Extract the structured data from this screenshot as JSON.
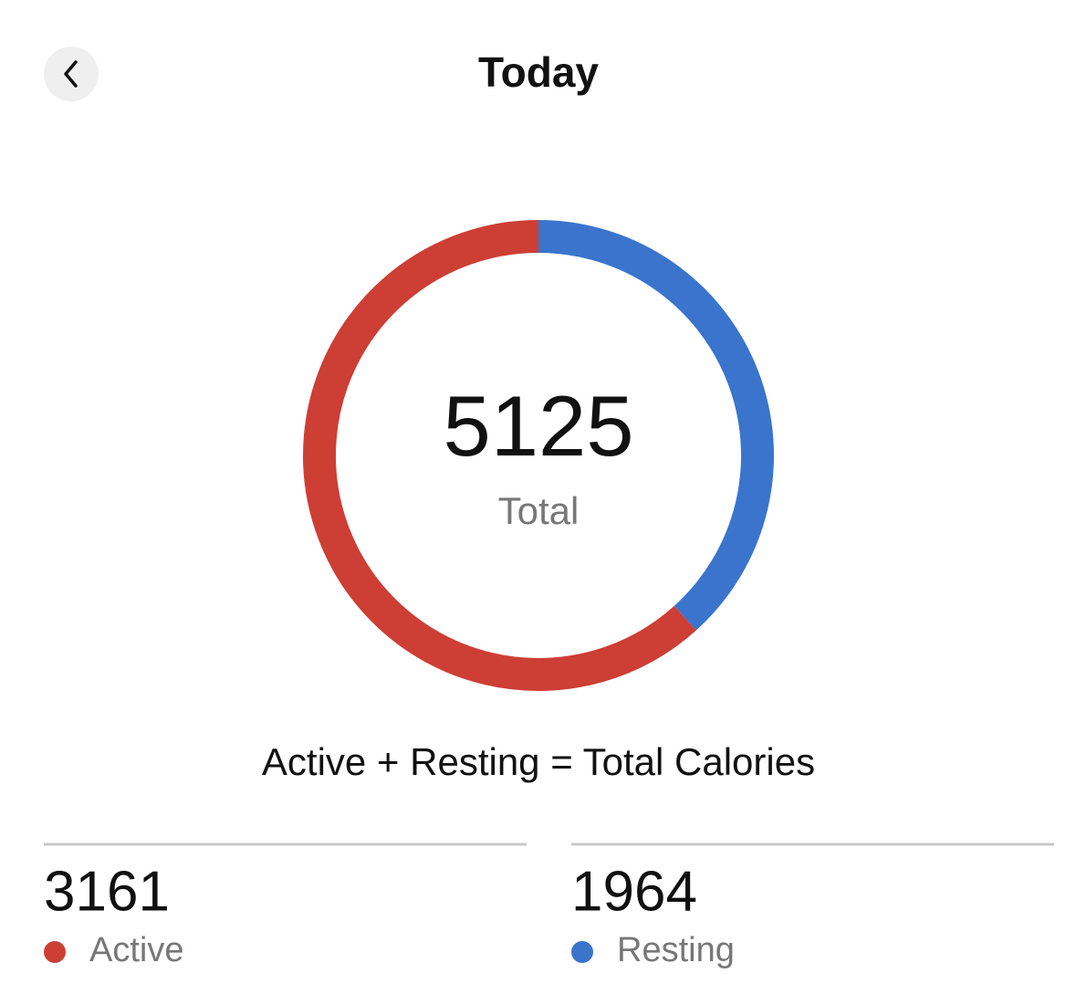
{
  "header": {
    "title": "Today"
  },
  "chart_data": {
    "type": "donut",
    "total": 5125,
    "total_label": "Total",
    "categories": [
      "Active",
      "Resting"
    ],
    "values": [
      3161,
      1964
    ],
    "colors": [
      "#cd3e35",
      "#3a74cc"
    ]
  },
  "caption": "Active + Resting = Total Calories"
}
